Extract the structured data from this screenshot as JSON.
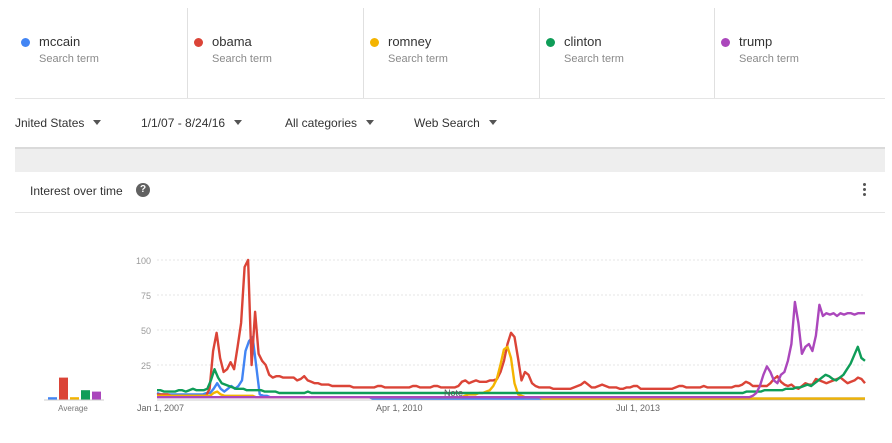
{
  "terms": [
    {
      "name": "mccain",
      "sub": "Search term",
      "color": "#4285f4"
    },
    {
      "name": "obama",
      "sub": "Search term",
      "color": "#db4437"
    },
    {
      "name": "romney",
      "sub": "Search term",
      "color": "#f4b400"
    },
    {
      "name": "clinton",
      "sub": "Search term",
      "color": "#0f9d58"
    },
    {
      "name": "trump",
      "sub": "Search term",
      "color": "#ab47bc"
    }
  ],
  "filters": {
    "region": "Jnited States",
    "date_range": "1/1/07 - 8/24/16",
    "category": "All categories",
    "property": "Web Search"
  },
  "card": {
    "title": "Interest over time",
    "help_glyph": "?",
    "more_icon": "more-vert-icon"
  },
  "chart_data": {
    "type": "line",
    "ylim": [
      0,
      100
    ],
    "yticks": [
      "100",
      "75",
      "50",
      "25"
    ],
    "xtick_labels": [
      "Jan 1, 2007",
      "Apr 1, 2010",
      "Jul 1, 2013"
    ],
    "x_start": "Jan 2007",
    "x_end": "Aug 2016",
    "note_label": "Note",
    "average_label": "Average",
    "averages": {
      "mccain": 2,
      "obama": 16,
      "romney": 2,
      "clinton": 7,
      "trump": 6
    },
    "series": [
      {
        "name": "mccain",
        "color": "#4285f4",
        "values": [
          5,
          4,
          4,
          4,
          4,
          4,
          4,
          4,
          4,
          4,
          4,
          4,
          4,
          4,
          5,
          5,
          8,
          12,
          8,
          6,
          8,
          10,
          8,
          10,
          14,
          35,
          42,
          45,
          25,
          4,
          3,
          3,
          2,
          2,
          2,
          2,
          2,
          2,
          2,
          2,
          2,
          2,
          2,
          2,
          2,
          2,
          2,
          2,
          2,
          2,
          2,
          2,
          2,
          2,
          2,
          2,
          2,
          2,
          2,
          2,
          2,
          1,
          1,
          1,
          1,
          1,
          1,
          1,
          1,
          1,
          1,
          1,
          1,
          1,
          1,
          1,
          1,
          1,
          1,
          1,
          1,
          1,
          1,
          1,
          1,
          1,
          1,
          1,
          1,
          1,
          1,
          1,
          1,
          1,
          1,
          1,
          1,
          1,
          1,
          1,
          1,
          1,
          1,
          1,
          1,
          1,
          1,
          1,
          1,
          1,
          1,
          1,
          1,
          1,
          1,
          1,
          1,
          1,
          1,
          1,
          1,
          1,
          1,
          1,
          1,
          1,
          1,
          1,
          1,
          1,
          1,
          1,
          1,
          1,
          1,
          1,
          1,
          1,
          1,
          1,
          1,
          1,
          1,
          1,
          1,
          1,
          1,
          1,
          1,
          1,
          1,
          1,
          1,
          1,
          1,
          1,
          1,
          1,
          1,
          1,
          1,
          1,
          1,
          1,
          1,
          1,
          1,
          1,
          1,
          1,
          1,
          1,
          1,
          1,
          1,
          1,
          1,
          1,
          1,
          1,
          1,
          1,
          1,
          1,
          1,
          1,
          1,
          1,
          1,
          1,
          1,
          1,
          1,
          1,
          1,
          1,
          1,
          1,
          1,
          1,
          1
        ]
      },
      {
        "name": "obama",
        "color": "#db4437",
        "values": [
          4,
          4,
          4,
          4,
          3,
          3,
          3,
          3,
          3,
          3,
          3,
          3,
          3,
          3,
          3,
          8,
          35,
          48,
          30,
          20,
          22,
          27,
          22,
          38,
          55,
          95,
          100,
          25,
          63,
          33,
          28,
          25,
          18,
          16,
          17,
          17,
          16,
          16,
          16,
          16,
          14,
          15,
          17,
          14,
          13,
          12,
          12,
          11,
          11,
          11,
          10,
          10,
          10,
          10,
          10,
          10,
          9,
          9,
          9,
          9,
          9,
          9,
          9,
          10,
          10,
          9,
          9,
          9,
          9,
          9,
          9,
          9,
          9,
          10,
          10,
          9,
          9,
          9,
          9,
          10,
          10,
          9,
          9,
          9,
          9,
          9,
          10,
          13,
          14,
          12,
          13,
          14,
          13,
          13,
          13,
          14,
          14,
          15,
          20,
          28,
          40,
          48,
          45,
          30,
          14,
          20,
          18,
          12,
          10,
          9,
          9,
          9,
          9,
          8,
          8,
          8,
          8,
          8,
          8,
          9,
          10,
          11,
          13,
          11,
          9,
          9,
          10,
          11,
          10,
          9,
          9,
          9,
          8,
          8,
          9,
          9,
          10,
          10,
          8,
          8,
          8,
          8,
          8,
          8,
          8,
          8,
          8,
          8,
          9,
          10,
          10,
          9,
          9,
          9,
          9,
          9,
          10,
          9,
          9,
          9,
          9,
          9,
          9,
          9,
          9,
          10,
          10,
          11,
          13,
          12,
          10,
          10,
          10,
          10,
          10,
          12,
          15,
          17,
          13,
          11,
          10,
          11,
          9,
          8,
          10,
          12,
          11,
          11,
          15,
          14,
          13,
          12,
          13,
          14,
          15,
          16,
          14,
          12,
          13,
          14,
          16,
          15,
          12
        ]
      },
      {
        "name": "romney",
        "color": "#f4b400",
        "values": [
          3,
          3,
          3,
          3,
          3,
          3,
          3,
          3,
          3,
          3,
          3,
          3,
          3,
          3,
          3,
          3,
          5,
          6,
          4,
          3,
          3,
          3,
          3,
          3,
          3,
          3,
          3,
          3,
          2,
          2,
          2,
          2,
          2,
          2,
          2,
          2,
          2,
          2,
          2,
          2,
          2,
          2,
          2,
          2,
          2,
          2,
          2,
          2,
          2,
          2,
          2,
          2,
          2,
          2,
          2,
          2,
          2,
          2,
          2,
          2,
          2,
          2,
          2,
          2,
          2,
          2,
          2,
          2,
          2,
          2,
          2,
          2,
          2,
          2,
          2,
          2,
          2,
          2,
          2,
          2,
          2,
          2,
          2,
          2,
          2,
          2,
          2,
          3,
          4,
          4,
          4,
          5,
          5,
          6,
          7,
          10,
          15,
          25,
          36,
          38,
          30,
          12,
          4,
          3,
          2,
          2,
          2,
          2,
          2,
          1,
          1,
          1,
          1,
          1,
          1,
          1,
          1,
          1,
          1,
          1,
          1,
          1,
          1,
          1,
          1,
          1,
          1,
          1,
          1,
          1,
          1,
          1,
          1,
          1,
          1,
          1,
          1,
          1,
          1,
          1,
          1,
          1,
          1,
          1,
          1,
          1,
          1,
          1,
          1,
          1,
          1,
          1,
          1,
          1,
          1,
          1,
          1,
          1,
          1,
          1,
          1,
          1,
          1,
          1,
          1,
          1,
          1,
          1,
          1,
          1,
          1,
          1,
          1,
          1,
          1,
          1,
          1,
          1,
          1,
          1,
          1,
          1,
          1,
          1,
          1,
          1,
          1,
          1,
          1,
          1,
          1,
          1,
          1,
          1,
          1,
          1,
          1,
          1,
          1,
          1,
          1
        ]
      },
      {
        "name": "clinton",
        "color": "#0f9d58",
        "values": [
          7,
          7,
          6,
          6,
          6,
          6,
          7,
          7,
          6,
          7,
          8,
          7,
          7,
          7,
          8,
          14,
          22,
          16,
          12,
          11,
          10,
          9,
          8,
          8,
          8,
          7,
          7,
          7,
          7,
          7,
          6,
          6,
          6,
          6,
          5,
          5,
          5,
          5,
          5,
          5,
          5,
          5,
          6,
          5,
          5,
          5,
          5,
          5,
          5,
          5,
          5,
          5,
          5,
          5,
          5,
          5,
          5,
          5,
          5,
          5,
          5,
          5,
          5,
          5,
          5,
          5,
          5,
          5,
          5,
          5,
          5,
          5,
          5,
          5,
          5,
          5,
          5,
          5,
          5,
          5,
          5,
          5,
          5,
          5,
          5,
          5,
          5,
          5,
          5,
          5,
          5,
          5,
          5,
          5,
          5,
          5,
          5,
          5,
          5,
          5,
          5,
          5,
          5,
          5,
          5,
          5,
          5,
          5,
          5,
          5,
          5,
          5,
          5,
          5,
          5,
          5,
          5,
          5,
          5,
          5,
          5,
          5,
          5,
          5,
          5,
          5,
          5,
          5,
          5,
          5,
          5,
          5,
          5,
          5,
          5,
          5,
          5,
          5,
          5,
          5,
          5,
          5,
          5,
          5,
          5,
          5,
          5,
          5,
          5,
          5,
          5,
          5,
          5,
          5,
          5,
          5,
          5,
          5,
          5,
          5,
          5,
          5,
          5,
          5,
          6,
          6,
          6,
          6,
          6,
          7,
          7,
          7,
          7,
          7,
          7,
          8,
          8,
          8,
          9,
          9,
          10,
          11,
          10,
          12,
          14,
          16,
          18,
          17,
          15,
          14,
          16,
          18,
          22,
          26,
          32,
          38,
          30,
          28
        ]
      },
      {
        "name": "trump",
        "color": "#ab47bc",
        "values": [
          2,
          2,
          2,
          2,
          2,
          2,
          2,
          2,
          2,
          2,
          2,
          2,
          2,
          2,
          2,
          2,
          2,
          2,
          2,
          2,
          2,
          2,
          2,
          2,
          2,
          2,
          2,
          2,
          2,
          2,
          2,
          2,
          2,
          2,
          2,
          2,
          2,
          2,
          2,
          2,
          2,
          2,
          2,
          2,
          2,
          2,
          2,
          2,
          2,
          2,
          2,
          2,
          2,
          2,
          2,
          2,
          2,
          2,
          2,
          2,
          2,
          2,
          2,
          2,
          2,
          2,
          2,
          2,
          2,
          2,
          2,
          2,
          2,
          2,
          2,
          2,
          2,
          2,
          2,
          2,
          2,
          2,
          2,
          2,
          2,
          2,
          2,
          2,
          2,
          2,
          2,
          2,
          2,
          2,
          2,
          2,
          2,
          2,
          2,
          2,
          2,
          2,
          2,
          2,
          2,
          2,
          2,
          2,
          2,
          2,
          2,
          2,
          2,
          2,
          2,
          2,
          2,
          2,
          2,
          2,
          2,
          2,
          2,
          2,
          2,
          2,
          2,
          2,
          2,
          2,
          2,
          2,
          2,
          2,
          2,
          2,
          2,
          2,
          2,
          2,
          2,
          2,
          2,
          2,
          2,
          2,
          2,
          2,
          2,
          2,
          2,
          2,
          2,
          2,
          2,
          2,
          2,
          2,
          2,
          2,
          2,
          2,
          2,
          2,
          2,
          2,
          2,
          2,
          2,
          2,
          3,
          5,
          10,
          18,
          24,
          20,
          14,
          12,
          18,
          20,
          28,
          40,
          70,
          55,
          33,
          38,
          40,
          35,
          46,
          68,
          60,
          62,
          61,
          62,
          60,
          62,
          61,
          62,
          62,
          61,
          62,
          62,
          62
        ]
      }
    ]
  }
}
